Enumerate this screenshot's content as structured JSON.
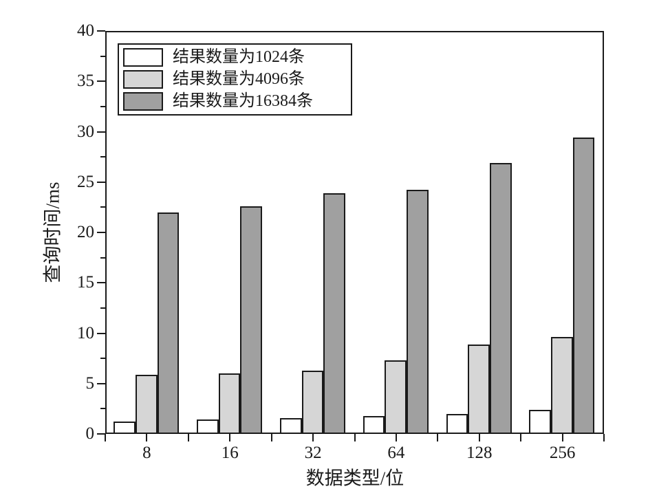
{
  "chart_data": {
    "type": "bar",
    "title": "",
    "xlabel": "数据类型/位",
    "ylabel": "查询时间/ms",
    "categories": [
      "8",
      "16",
      "32",
      "64",
      "128",
      "256"
    ],
    "series": [
      {
        "name": "结果数量为1024条",
        "color": "#ffffff",
        "values": [
          1.2,
          1.4,
          1.6,
          1.8,
          2.0,
          2.4
        ]
      },
      {
        "name": "结果数量为4096条",
        "color": "#d6d6d6",
        "values": [
          5.9,
          6.0,
          6.3,
          7.3,
          8.9,
          9.6
        ]
      },
      {
        "name": "结果数量为16384条",
        "color": "#a0a0a0",
        "values": [
          22.0,
          22.6,
          23.9,
          24.2,
          26.9,
          29.4
        ]
      }
    ],
    "ylim": [
      0,
      40
    ],
    "y_major_step": 5,
    "y_minor_step": 2.5,
    "legend_position": "top-left",
    "grid": false,
    "axis_color": "#1a1a1a",
    "background_color": "#ffffff"
  }
}
